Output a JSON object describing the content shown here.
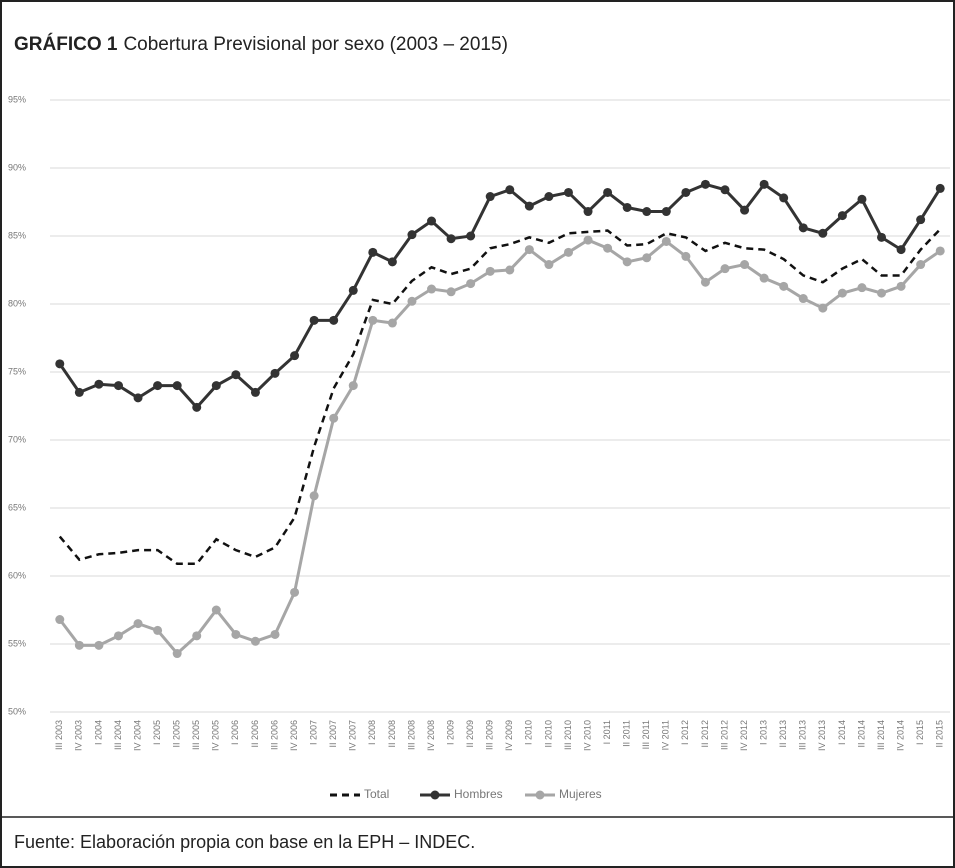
{
  "chart_data": {
    "type": "line",
    "title_label": "GRÁFICO 1",
    "title": "Cobertura Previsional por sexo (2003 – 2015)",
    "source": "Fuente: Elaboración propia con base en la EPH – INDEC.",
    "categories": [
      "III 2003",
      "IV 2003",
      "I 2004",
      "III 2004",
      "IV 2004",
      "I 2005",
      "II 2005",
      "III 2005",
      "IV 2005",
      "I 2006",
      "II 2006",
      "III 2006",
      "IV 2006",
      "I 2007",
      "II 2007",
      "IV 2007",
      "I 2008",
      "II 2008",
      "III 2008",
      "IV 2008",
      "I 2009",
      "II 2009",
      "III 2009",
      "IV 2009",
      "I 2010",
      "II 2010",
      "III 2010",
      "IV 2010",
      "I 2011",
      "II 2011",
      "III 2011",
      "IV 2011",
      "I 2012",
      "II 2012",
      "III 2012",
      "IV 2012",
      "I 2013",
      "II 2013",
      "III 2013",
      "IV 2013",
      "I 2014",
      "II 2014",
      "III 2014",
      "IV 2014",
      "I 2015",
      "II 2015"
    ],
    "series": [
      {
        "name": "Total",
        "color": "#111111",
        "dashed": true,
        "markers": false,
        "values": [
          62.9,
          61.2,
          61.6,
          61.7,
          61.9,
          61.9,
          60.9,
          60.9,
          62.7,
          61.9,
          61.4,
          62.1,
          64.3,
          69.5,
          73.8,
          76.3,
          80.3,
          80.0,
          81.7,
          82.7,
          82.2,
          82.6,
          84.1,
          84.4,
          84.9,
          84.5,
          85.2,
          85.3,
          85.4,
          84.3,
          84.4,
          85.2,
          84.9,
          83.9,
          84.5,
          84.1,
          84.0,
          83.3,
          82.1,
          81.6,
          82.6,
          83.3,
          82.1,
          82.1,
          84.0,
          85.5
        ]
      },
      {
        "name": "Hombres",
        "color": "#333333",
        "dashed": false,
        "markers": true,
        "values": [
          75.6,
          73.5,
          74.1,
          74.0,
          73.1,
          74.0,
          74.0,
          72.4,
          74.0,
          74.8,
          73.5,
          74.9,
          76.2,
          78.8,
          78.8,
          81.0,
          83.8,
          83.1,
          85.1,
          86.1,
          84.8,
          85.0,
          87.9,
          88.4,
          87.2,
          87.9,
          88.2,
          86.8,
          88.2,
          87.1,
          86.8,
          86.8,
          88.2,
          88.8,
          88.4,
          86.9,
          88.8,
          87.8,
          85.6,
          85.2,
          86.5,
          87.7,
          84.9,
          84.0,
          86.2,
          88.5
        ]
      },
      {
        "name": "Mujeres",
        "color": "#a6a6a6",
        "dashed": false,
        "markers": true,
        "values": [
          56.8,
          54.9,
          54.9,
          55.6,
          56.5,
          56.0,
          54.3,
          55.6,
          57.5,
          55.7,
          55.2,
          55.7,
          58.8,
          65.9,
          71.6,
          74.0,
          78.8,
          78.6,
          80.2,
          81.1,
          80.9,
          81.5,
          82.4,
          82.5,
          84.0,
          82.9,
          83.8,
          84.7,
          84.1,
          83.1,
          83.4,
          84.6,
          83.5,
          81.6,
          82.6,
          82.9,
          81.9,
          81.3,
          80.4,
          79.7,
          80.8,
          81.2,
          80.8,
          81.3,
          82.9,
          83.9
        ]
      }
    ],
    "ylim": [
      50,
      95
    ],
    "yticks": [
      {
        "value": 50,
        "label": "50%"
      },
      {
        "value": 55,
        "label": "55%"
      },
      {
        "value": 60,
        "label": "60%"
      },
      {
        "value": 65,
        "label": "65%"
      },
      {
        "value": 70,
        "label": "70%"
      },
      {
        "value": 75,
        "label": "75%"
      },
      {
        "value": 80,
        "label": "80%"
      },
      {
        "value": 85,
        "label": "85%"
      },
      {
        "value": 90,
        "label": "90%"
      },
      {
        "value": 95,
        "label": "95%"
      }
    ],
    "grid": true,
    "legend": "bottom"
  }
}
